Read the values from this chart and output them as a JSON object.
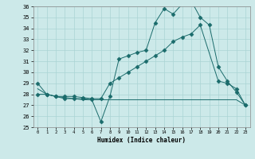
{
  "xlabel": "Humidex (Indice chaleur)",
  "xlim": [
    -0.5,
    23.5
  ],
  "ylim": [
    25,
    36
  ],
  "yticks": [
    25,
    26,
    27,
    28,
    29,
    30,
    31,
    32,
    33,
    34,
    35,
    36
  ],
  "xticks": [
    0,
    1,
    2,
    3,
    4,
    5,
    6,
    7,
    8,
    9,
    10,
    11,
    12,
    13,
    14,
    15,
    16,
    17,
    18,
    19,
    20,
    21,
    22,
    23
  ],
  "bg_color": "#cce9e9",
  "line_color": "#1a6b6b",
  "grid_color": "#aad4d4",
  "line1_x": [
    0,
    1,
    2,
    3,
    4,
    5,
    6,
    7,
    8,
    9,
    10,
    11,
    12,
    13,
    14,
    15,
    16,
    17,
    18,
    19,
    20,
    21,
    22,
    23
  ],
  "line1_y": [
    29,
    28,
    27.8,
    27.6,
    27.6,
    27.6,
    27.5,
    25.5,
    27.8,
    31.2,
    31.5,
    31.8,
    32.0,
    34.5,
    35.8,
    35.3,
    36.2,
    36.5,
    35.0,
    34.3,
    30.5,
    29.2,
    28.2,
    27.0
  ],
  "line2_x": [
    0,
    1,
    2,
    3,
    4,
    5,
    6,
    7,
    8,
    9,
    10,
    11,
    12,
    13,
    14,
    15,
    16,
    17,
    18,
    20,
    21,
    22,
    23
  ],
  "line2_y": [
    28,
    28,
    27.8,
    27.8,
    27.8,
    27.7,
    27.6,
    27.6,
    29.0,
    29.5,
    30.0,
    30.5,
    31.0,
    31.5,
    32.0,
    32.8,
    33.2,
    33.5,
    34.3,
    29.2,
    29.0,
    28.5,
    27.0
  ],
  "line3_x": [
    0,
    1,
    2,
    3,
    4,
    5,
    6,
    7,
    8,
    9,
    10,
    11,
    12,
    13,
    14,
    15,
    16,
    17,
    18,
    19,
    20,
    21,
    22,
    23
  ],
  "line3_y": [
    28.5,
    28.0,
    27.8,
    27.7,
    27.6,
    27.5,
    27.5,
    27.5,
    27.5,
    27.5,
    27.5,
    27.5,
    27.5,
    27.5,
    27.5,
    27.5,
    27.5,
    27.5,
    27.5,
    27.5,
    27.5,
    27.5,
    27.5,
    27.0
  ]
}
